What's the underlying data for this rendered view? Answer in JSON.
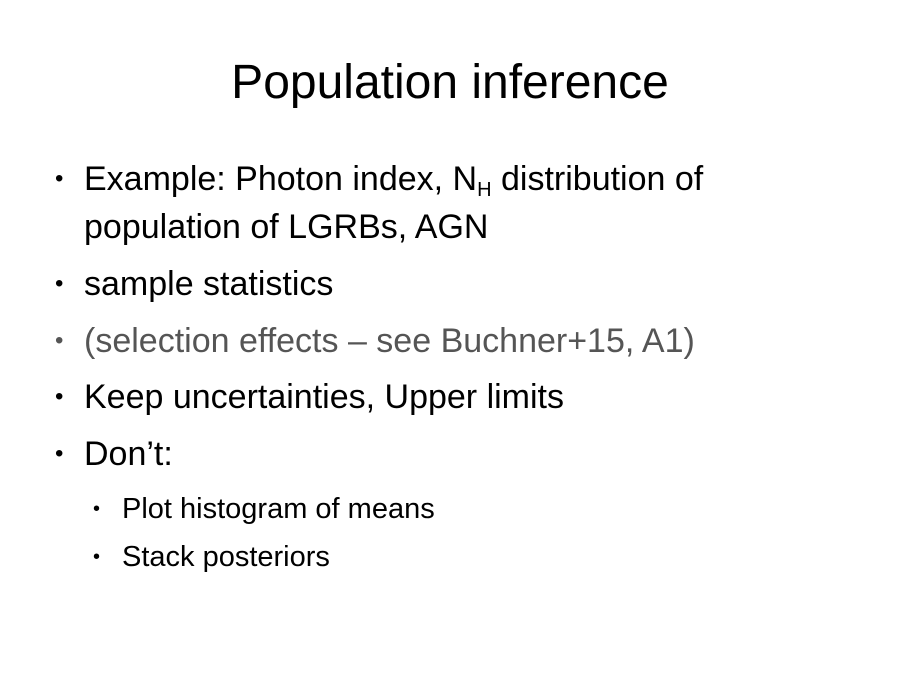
{
  "slide": {
    "title": "Population inference",
    "bullet_symbol": "•",
    "bullets": [
      {
        "text_before_sub": "Example: Photon index, N",
        "subscript": "H",
        "text_after_sub": " distribution of population of LGRBs, AGN"
      },
      {
        "text": "sample statistics"
      },
      {
        "text": "(selection effects – see Buchner+15, A1)"
      },
      {
        "text": "Keep uncertainties, Upper limits"
      },
      {
        "text": "Don’t:"
      }
    ],
    "sub_bullets": [
      {
        "text": "Plot histogram of means"
      },
      {
        "text": "Stack posteriors"
      }
    ]
  }
}
